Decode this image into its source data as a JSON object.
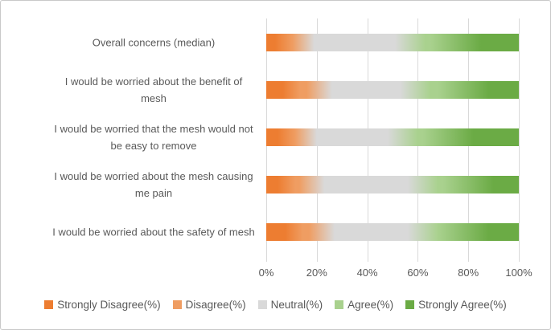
{
  "chart_data": {
    "type": "bar",
    "orientation": "horizontal",
    "stacked": true,
    "percent_scale": true,
    "title": "",
    "xlabel": "",
    "ylabel": "",
    "categories": [
      "Overall concerns (median)",
      "I would be worried about the benefit of mesh",
      "I would be worried that the mesh would not be easy to remove",
      "I would be worried about the mesh causing me pain",
      "I would be worried about the safety of mesh"
    ],
    "series": [
      {
        "name": "Strongly Disagree(%)",
        "color": "#ED7D31",
        "values": [
          7,
          10,
          8,
          8,
          11
        ]
      },
      {
        "name": "Disagree(%)",
        "color": "#EF9D62",
        "values": [
          7,
          11,
          7,
          10,
          11
        ]
      },
      {
        "name": "Neutral(%)",
        "color": "#D9D9D9",
        "values": [
          43,
          38,
          39,
          44,
          40
        ]
      },
      {
        "name": "Agree(%)",
        "color": "#A9D18E",
        "values": [
          18,
          19,
          18,
          18,
          16
        ]
      },
      {
        "name": "Strongly Agree(%)",
        "color": "#6BAB45",
        "values": [
          25,
          22,
          28,
          20,
          22
        ]
      }
    ],
    "x_ticks": [
      "0%",
      "20%",
      "40%",
      "60%",
      "80%",
      "100%"
    ],
    "xlim": [
      0,
      100
    ],
    "gridlines": "vertical",
    "legend_position": "bottom",
    "bar_fill_style": "gradient-blend-between-segments"
  },
  "style": {
    "text_color": "#595959",
    "gridline_color": "#D9D9D9",
    "border_color": "#C9C9C9",
    "background": "#FFFFFF"
  }
}
